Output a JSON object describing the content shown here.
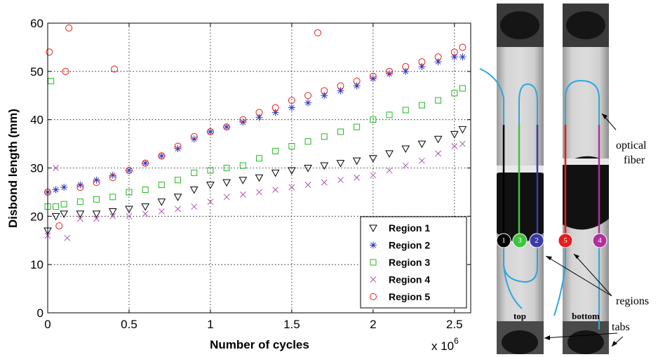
{
  "chart_data": {
    "type": "scatter",
    "xlabel": "Number of cycles",
    "ylabel": "Disbond length (mm)",
    "x_multiplier": "x 10",
    "x_multiplier_exp": "6",
    "xlim": [
      0,
      2.6
    ],
    "ylim": [
      0,
      60
    ],
    "xticks": [
      0,
      0.5,
      1,
      1.5,
      2,
      2.5
    ],
    "xtick_labels": [
      "0",
      "0.5",
      "1",
      "1.5",
      "2",
      "2.5"
    ],
    "yticks": [
      0,
      10,
      20,
      30,
      40,
      50,
      60
    ],
    "ytick_labels": [
      "0",
      "10",
      "20",
      "30",
      "40",
      "50",
      "60"
    ],
    "grid": true,
    "legend_position": "bottom-right",
    "series": [
      {
        "name": "Region 1",
        "color": "#000000",
        "marker": "triangle-down",
        "x": [
          0,
          0.05,
          0.1,
          0.2,
          0.3,
          0.4,
          0.5,
          0.6,
          0.7,
          0.8,
          0.9,
          1.0,
          1.1,
          1.2,
          1.3,
          1.4,
          1.5,
          1.6,
          1.7,
          1.8,
          1.9,
          2.0,
          2.1,
          2.2,
          2.3,
          2.4,
          2.5,
          2.55
        ],
        "y": [
          17,
          20,
          20.5,
          20.5,
          20.5,
          21,
          21.5,
          22,
          23,
          24,
          25.5,
          26.5,
          27,
          27.5,
          28,
          29,
          29.5,
          30,
          30.5,
          31,
          31.5,
          32,
          33,
          34,
          35,
          36,
          37,
          38
        ]
      },
      {
        "name": "Region 2",
        "color": "#2b3bbf",
        "marker": "star",
        "x": [
          0,
          0.05,
          0.1,
          0.2,
          0.3,
          0.4,
          0.5,
          0.6,
          0.7,
          0.8,
          0.9,
          1.0,
          1.1,
          1.2,
          1.3,
          1.4,
          1.5,
          1.6,
          1.7,
          1.8,
          1.9,
          2.0,
          2.1,
          2.2,
          2.3,
          2.4,
          2.5,
          2.55
        ],
        "y": [
          25,
          25.5,
          26,
          26.5,
          27.5,
          28.5,
          29.5,
          31,
          32.5,
          34,
          36,
          37.5,
          38.5,
          39.5,
          40.5,
          41.5,
          42.5,
          43.5,
          45,
          46,
          47,
          48.5,
          49.5,
          50,
          51,
          52,
          53,
          53
        ]
      },
      {
        "name": "Region 3",
        "color": "#22b822",
        "marker": "square",
        "x": [
          0,
          0.02,
          0.05,
          0.1,
          0.2,
          0.3,
          0.4,
          0.5,
          0.6,
          0.7,
          0.8,
          0.9,
          1.0,
          1.1,
          1.2,
          1.3,
          1.4,
          1.5,
          1.6,
          1.7,
          1.8,
          1.9,
          2.0,
          2.1,
          2.2,
          2.3,
          2.4,
          2.5,
          2.55
        ],
        "y": [
          22,
          48,
          22,
          22.5,
          23,
          23.5,
          24,
          25,
          25.5,
          26.5,
          27.5,
          29,
          29.5,
          30,
          30.5,
          32,
          33.5,
          34.5,
          35.5,
          36.5,
          37.5,
          38.5,
          40,
          41,
          42,
          43,
          44,
          45.5,
          46.5
        ]
      },
      {
        "name": "Region 4",
        "color": "#b050b0",
        "marker": "x",
        "x": [
          0,
          0.05,
          0.12,
          0.2,
          0.3,
          0.4,
          0.5,
          0.6,
          0.7,
          0.8,
          0.9,
          1.0,
          1.1,
          1.2,
          1.3,
          1.4,
          1.5,
          1.6,
          1.7,
          1.8,
          1.9,
          2.0,
          2.1,
          2.2,
          2.3,
          2.4,
          2.5,
          2.55
        ],
        "y": [
          16,
          30,
          15.5,
          19.5,
          19.5,
          20,
          20,
          20.5,
          21,
          21.5,
          22,
          23,
          24,
          24.5,
          25,
          25.5,
          26,
          26.5,
          27,
          27.5,
          28,
          28.5,
          29.5,
          30.5,
          31.5,
          33,
          34.5,
          35
        ]
      },
      {
        "name": "Region 5",
        "color": "#e81c1c",
        "marker": "circle",
        "x": [
          0,
          0.01,
          0.07,
          0.11,
          0.13,
          0.2,
          0.3,
          0.4,
          0.41,
          0.5,
          0.6,
          0.7,
          0.8,
          0.9,
          1.0,
          1.1,
          1.2,
          1.3,
          1.4,
          1.5,
          1.6,
          1.66,
          1.7,
          1.8,
          1.9,
          2.0,
          2.1,
          2.2,
          2.3,
          2.4,
          2.5,
          2.55
        ],
        "y": [
          25,
          54,
          18,
          50,
          59,
          26,
          27,
          28,
          50.5,
          29.5,
          31,
          32.5,
          34.5,
          36.5,
          37.5,
          38.5,
          40,
          41.5,
          42.5,
          44,
          45,
          58,
          46,
          47,
          48,
          49,
          50,
          51,
          52,
          53,
          54,
          55
        ]
      }
    ]
  },
  "figure": {
    "strips": [
      {
        "label": "top",
        "regions": [
          "1",
          "3",
          "2"
        ],
        "region_colors": [
          "#000000",
          "#3cc43c",
          "#3a3aa8"
        ]
      },
      {
        "label": "bottom",
        "regions": [
          "5",
          "4"
        ],
        "region_colors": [
          "#e81c1c",
          "#b0309c"
        ]
      }
    ],
    "fiber_color": "#2aa8e0",
    "annotations": {
      "optical_fiber_line1": "optical",
      "optical_fiber_line2": "fiber",
      "regions": "regions",
      "tabs": "tabs"
    }
  }
}
